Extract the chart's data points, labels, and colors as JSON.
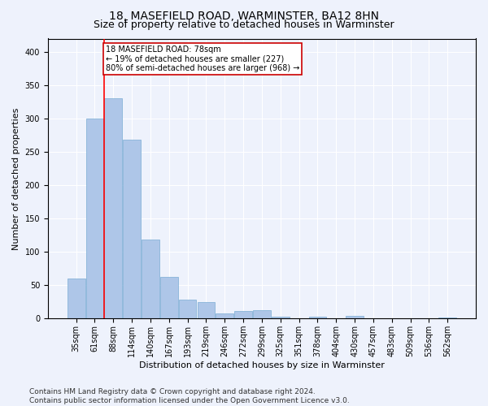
{
  "title1": "18, MASEFIELD ROAD, WARMINSTER, BA12 8HN",
  "title2": "Size of property relative to detached houses in Warminster",
  "xlabel": "Distribution of detached houses by size in Warminster",
  "ylabel": "Number of detached properties",
  "categories": [
    "35sqm",
    "61sqm",
    "88sqm",
    "114sqm",
    "140sqm",
    "167sqm",
    "193sqm",
    "219sqm",
    "246sqm",
    "272sqm",
    "299sqm",
    "325sqm",
    "351sqm",
    "378sqm",
    "404sqm",
    "430sqm",
    "457sqm",
    "483sqm",
    "509sqm",
    "536sqm",
    "562sqm"
  ],
  "values": [
    60,
    300,
    330,
    268,
    118,
    63,
    28,
    25,
    8,
    11,
    13,
    3,
    0,
    3,
    0,
    4,
    0,
    0,
    0,
    0,
    2
  ],
  "bar_color": "#aec6e8",
  "bar_edge_color": "#7aacd4",
  "redline_x": 1.5,
  "annotation_text": "18 MASEFIELD ROAD: 78sqm\n← 19% of detached houses are smaller (227)\n80% of semi-detached houses are larger (968) →",
  "annotation_box_color": "#ffffff",
  "annotation_box_edge_color": "#cc0000",
  "footnote": "Contains HM Land Registry data © Crown copyright and database right 2024.\nContains public sector information licensed under the Open Government Licence v3.0.",
  "ylim": [
    0,
    420
  ],
  "background_color": "#eef2fc",
  "plot_bg_color": "#eef2fc",
  "grid_color": "#ffffff",
  "title1_fontsize": 10,
  "title2_fontsize": 9,
  "xlabel_fontsize": 8,
  "ylabel_fontsize": 8,
  "tick_fontsize": 7,
  "footnote_fontsize": 6.5
}
